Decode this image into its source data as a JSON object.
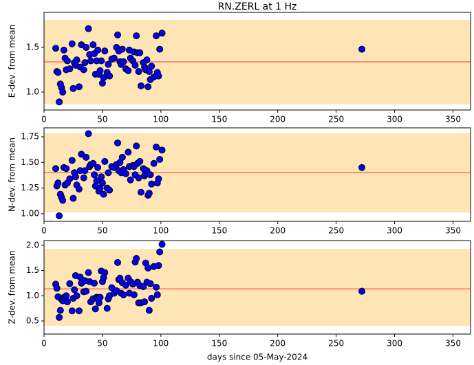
{
  "chart_data": [
    {
      "type": "scatter",
      "title": "RN.ZERL at 1 Hz",
      "ylabel": "E-dev. from mean",
      "x": [
        10,
        11,
        12,
        13,
        14,
        15,
        16,
        17,
        18,
        19,
        20,
        22,
        24,
        25,
        26,
        27,
        28,
        30,
        31,
        32,
        34,
        35,
        36,
        38,
        39,
        40,
        42,
        43,
        44,
        45,
        46,
        47,
        48,
        49,
        50,
        51,
        52,
        54,
        55,
        56,
        58,
        60,
        62,
        63,
        64,
        65,
        66,
        67,
        68,
        70,
        72,
        73,
        74,
        76,
        77,
        78,
        79,
        80,
        81,
        82,
        83,
        85,
        86,
        87,
        88,
        89,
        90,
        91,
        92,
        94,
        96,
        97,
        98,
        99,
        101,
        272
      ],
      "values": [
        1.49,
        1.23,
        1.22,
        0.89,
        1.09,
        1.05,
        1.0,
        1.47,
        1.38,
        1.25,
        1.35,
        1.26,
        1.54,
        1.04,
        1.33,
        1.3,
        1.36,
        1.06,
        1.28,
        1.53,
        1.25,
        1.33,
        1.5,
        1.71,
        1.42,
        1.35,
        1.53,
        1.43,
        1.2,
        1.35,
        1.47,
        1.2,
        1.24,
        1.35,
        1.1,
        1.16,
        1.46,
        1.22,
        1.31,
        1.18,
        1.37,
        1.38,
        1.5,
        1.64,
        1.46,
        1.34,
        1.31,
        1.48,
        1.34,
        1.26,
        1.24,
        1.47,
        1.38,
        1.35,
        1.45,
        1.3,
        1.63,
        1.44,
        1.23,
        1.44,
        1.07,
        1.33,
        1.28,
        1.25,
        1.36,
        1.06,
        1.23,
        1.14,
        1.29,
        1.17,
        1.63,
        1.22,
        1.18,
        1.48,
        1.66,
        1.48
      ],
      "color": "#0000ff",
      "band": [
        0.862,
        1.808
      ],
      "band_color": "#ffe4b5",
      "mean": 1.338,
      "mean_color": "#ff6f61",
      "xlim": [
        0,
        365
      ],
      "xticks": [
        0,
        50,
        100,
        150,
        200,
        250,
        300,
        350
      ],
      "ylim": [
        0.8,
        1.892
      ],
      "yticks": [
        {
          "value": 1.0,
          "label": "1.0"
        },
        1.5
      ]
    },
    {
      "type": "scatter",
      "ylabel": "N-dev. from mean",
      "x": [
        10,
        11,
        12,
        13,
        14,
        15,
        16,
        17,
        18,
        19,
        20,
        22,
        24,
        25,
        26,
        27,
        28,
        30,
        31,
        32,
        34,
        35,
        36,
        38,
        39,
        40,
        42,
        43,
        44,
        45,
        46,
        47,
        48,
        49,
        50,
        51,
        52,
        54,
        55,
        56,
        58,
        60,
        62,
        63,
        64,
        65,
        66,
        67,
        68,
        70,
        72,
        73,
        74,
        76,
        77,
        78,
        79,
        80,
        81,
        82,
        83,
        85,
        86,
        87,
        88,
        89,
        90,
        91,
        92,
        94,
        96,
        97,
        98,
        99,
        101,
        272
      ],
      "values": [
        1.44,
        1.27,
        1.3,
        0.98,
        1.19,
        1.16,
        1.13,
        1.45,
        1.28,
        1.44,
        1.3,
        1.34,
        1.52,
        1.15,
        1.4,
        1.36,
        1.28,
        1.24,
        1.42,
        1.58,
        1.35,
        1.42,
        1.55,
        1.78,
        1.46,
        1.48,
        1.49,
        1.38,
        1.27,
        1.32,
        1.45,
        1.22,
        1.25,
        1.36,
        1.3,
        1.19,
        1.51,
        1.25,
        1.4,
        1.23,
        1.46,
        1.45,
        1.48,
        1.69,
        1.42,
        1.5,
        1.4,
        1.55,
        1.43,
        1.39,
        1.6,
        1.46,
        1.33,
        1.47,
        1.46,
        1.38,
        1.66,
        1.49,
        1.35,
        1.51,
        1.21,
        1.44,
        1.37,
        1.39,
        1.42,
        1.18,
        1.2,
        1.38,
        1.29,
        1.49,
        1.65,
        1.3,
        1.34,
        1.53,
        1.62,
        1.45
      ],
      "color": "#0000ff",
      "band": [
        1.013,
        1.784
      ],
      "band_color": "#ffe4b5",
      "mean": 1.4,
      "mean_color": "#ff6f61",
      "xlim": [
        0,
        365
      ],
      "xticks": [
        0,
        50,
        100,
        150,
        200,
        250,
        300,
        350
      ],
      "ylim": [
        0.926,
        1.837
      ],
      "yticks": [
        {
          "value": 1.0,
          "label": "1.00"
        },
        1.25,
        {
          "value": 1.5,
          "label": "1.50"
        },
        1.75
      ]
    },
    {
      "type": "scatter",
      "ylabel": "Z-dev. from mean",
      "xlabel": "days since 05-May-2024",
      "x": [
        10,
        11,
        12,
        13,
        14,
        15,
        16,
        17,
        18,
        19,
        20,
        22,
        24,
        25,
        26,
        27,
        28,
        30,
        31,
        32,
        34,
        35,
        36,
        38,
        39,
        40,
        42,
        43,
        44,
        45,
        46,
        47,
        48,
        49,
        50,
        51,
        52,
        54,
        55,
        56,
        58,
        60,
        62,
        63,
        64,
        65,
        66,
        67,
        68,
        70,
        72,
        73,
        74,
        76,
        77,
        78,
        79,
        80,
        81,
        82,
        83,
        85,
        86,
        87,
        88,
        89,
        90,
        91,
        92,
        94,
        96,
        97,
        98,
        99,
        101,
        272
      ],
      "values": [
        1.23,
        1.15,
        0.98,
        0.57,
        0.71,
        0.93,
        0.9,
        0.97,
        0.95,
        1.0,
        0.88,
        1.24,
        0.7,
        0.95,
        1.12,
        1.4,
        1.0,
        0.7,
        1.37,
        1.25,
        1.08,
        1.3,
        1.09,
        1.46,
        1.28,
        0.88,
        0.94,
        1.25,
        0.74,
        0.97,
        0.96,
        0.86,
        0.97,
        1.49,
        1.28,
        1.36,
        1.46,
        0.75,
        0.94,
        1.0,
        1.16,
        1.05,
        1.1,
        1.66,
        1.32,
        1.35,
        1.05,
        1.26,
        1.02,
        1.21,
        1.35,
        1.05,
        1.28,
        1.23,
        1.02,
        1.67,
        1.74,
        1.27,
        0.86,
        1.2,
        0.86,
        1.18,
        0.88,
        1.65,
        1.27,
        1.55,
        0.71,
        1.24,
        0.95,
        1.58,
        1.17,
        1.02,
        1.6,
        1.87,
        2.02,
        1.09
      ],
      "color": "#0000ff",
      "band": [
        0.4,
        1.93
      ],
      "band_color": "#ffe4b5",
      "mean": 1.136,
      "mean_color": "#ff6f61",
      "xlim": [
        0,
        365
      ],
      "xticks": [
        0,
        50,
        100,
        150,
        200,
        250,
        300,
        350
      ],
      "ylim": [
        0.24,
        2.095
      ],
      "yticks": [
        0.5,
        {
          "value": 1.0,
          "label": "1.0"
        },
        1.5,
        {
          "value": 2.0,
          "label": "2.0"
        }
      ]
    }
  ]
}
